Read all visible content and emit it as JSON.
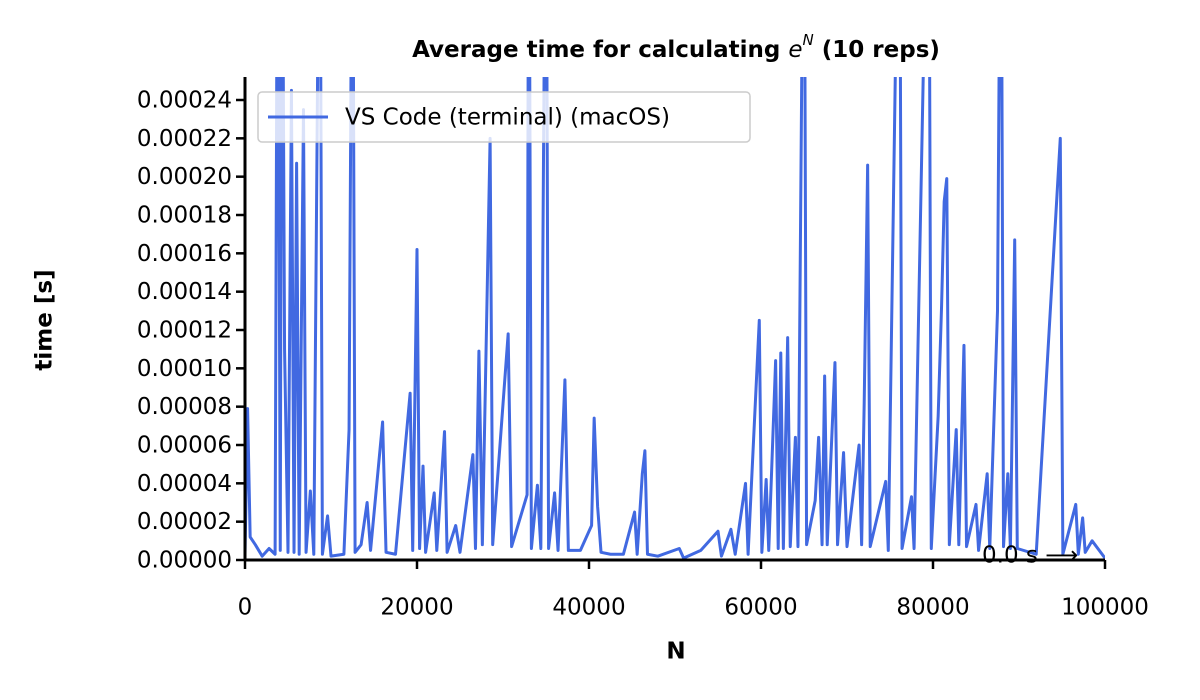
{
  "chart_data": {
    "type": "line",
    "title": [
      "Average time for calculating ",
      "e",
      "N",
      " (10 reps)"
    ],
    "x_label": "N",
    "y_label": "time [s]",
    "annotation": "0.0 s ⟶",
    "legend": "upper left",
    "xlim": [
      0,
      100000
    ],
    "ylim": [
      0,
      0.000252
    ],
    "xticks": [
      0,
      20000,
      40000,
      60000,
      80000,
      100000
    ],
    "yticks": [
      {
        "value": 0,
        "label": "0.00000"
      },
      {
        "value": 2e-05,
        "label": "0.00002"
      },
      {
        "value": 4e-05,
        "label": "0.00004"
      },
      {
        "value": 6e-05,
        "label": "0.00006"
      },
      {
        "value": 8e-05,
        "label": "0.00008"
      },
      {
        "value": 0.0001,
        "label": "0.00010"
      },
      {
        "value": 0.00012,
        "label": "0.00012"
      },
      {
        "value": 0.00014,
        "label": "0.00014"
      },
      {
        "value": 0.00016,
        "label": "0.00016"
      },
      {
        "value": 0.00018,
        "label": "0.00018"
      },
      {
        "value": 0.0002,
        "label": "0.00020"
      },
      {
        "value": 0.00022,
        "label": "0.00022"
      },
      {
        "value": 0.00024,
        "label": "0.00024"
      }
    ],
    "x": [
      0,
      300,
      600,
      1200,
      2000,
      2800,
      3500,
      3800,
      4100,
      4300,
      4600,
      5000,
      5400,
      5700,
      6000,
      6300,
      6800,
      7100,
      7600,
      8000,
      8700,
      9000,
      9600,
      10000,
      11500,
      12100,
      12500,
      12800,
      13500,
      14200,
      14600,
      16000,
      16400,
      17500,
      19200,
      19500,
      20000,
      20300,
      20700,
      21000,
      22000,
      22300,
      23200,
      23500,
      24500,
      25000,
      26500,
      26800,
      27200,
      27600,
      28500,
      28800,
      30600,
      31000,
      32800,
      33000,
      33300,
      34000,
      34400,
      35000,
      35300,
      36000,
      36400,
      37200,
      37600,
      39000,
      40300,
      40600,
      41000,
      41400,
      42500,
      44000,
      45300,
      45600,
      46200,
      46500,
      46800,
      48000,
      50500,
      51000,
      53000,
      55000,
      55400,
      56500,
      57000,
      58200,
      58500,
      59800,
      60100,
      60600,
      60900,
      61700,
      62000,
      62300,
      62600,
      63100,
      63400,
      64000,
      64300,
      65000,
      65300,
      66300,
      66700,
      67100,
      67400,
      67700,
      68600,
      68900,
      69600,
      70000,
      71400,
      71700,
      72000,
      72400,
      72700,
      74500,
      74800,
      76100,
      76400,
      77500,
      77800,
      79500,
      79800,
      80600,
      81000,
      81300,
      81600,
      81900,
      82700,
      83000,
      83600,
      83900,
      85000,
      85300,
      86300,
      86600,
      87500,
      87900,
      88200,
      88700,
      89000,
      89500,
      89800,
      92000,
      94800,
      95100,
      96600,
      96900,
      97400,
      97700,
      98500,
      100000
    ],
    "series": [
      {
        "name": "VS Code (terminal) (macOS)",
        "color": "#4169e1",
        "values": [
          3e-06,
          7.9e-05,
          1.2e-05,
          8e-06,
          2e-06,
          6e-06,
          3e-06,
          0.0004,
          5e-06,
          0.0004,
          0.00011,
          4e-06,
          0.000245,
          4e-06,
          0.000207,
          3e-06,
          0.000235,
          4e-06,
          3.6e-05,
          3e-06,
          0.0004,
          3e-06,
          2.3e-05,
          2e-06,
          3e-06,
          6.8e-05,
          0.0004,
          4e-06,
          8e-06,
          3e-05,
          5e-06,
          7.2e-05,
          4e-06,
          3e-06,
          8.7e-05,
          5e-06,
          0.000162,
          6e-06,
          4.9e-05,
          4e-06,
          3.5e-05,
          5e-06,
          6.7e-05,
          4e-06,
          1.8e-05,
          4e-06,
          5.5e-05,
          6e-06,
          0.000109,
          8e-06,
          0.00022,
          8e-06,
          0.000118,
          7e-06,
          3.4e-05,
          0.0004,
          6e-06,
          3.9e-05,
          6e-06,
          0.0004,
          6e-06,
          3.5e-05,
          5e-06,
          9.4e-05,
          5e-06,
          5e-06,
          1.8e-05,
          7.4e-05,
          2.8e-05,
          4e-06,
          3e-06,
          3e-06,
          2.5e-05,
          3e-06,
          4.5e-05,
          5.7e-05,
          3e-06,
          2e-06,
          6e-06,
          1e-06,
          5e-06,
          1.5e-05,
          2e-06,
          1.6e-05,
          3e-06,
          4e-05,
          3e-06,
          0.000125,
          4e-06,
          4.2e-05,
          5e-06,
          0.000104,
          6e-06,
          0.000108,
          6e-06,
          0.000116,
          7e-06,
          6.4e-05,
          7e-06,
          0.0004,
          8e-06,
          3.1e-05,
          6.4e-05,
          8e-06,
          9.6e-05,
          8e-06,
          0.000103,
          8e-06,
          5.6e-05,
          7e-06,
          6e-05,
          8e-06,
          8.2e-05,
          0.000206,
          7e-06,
          4.1e-05,
          5e-06,
          0.0004,
          6e-06,
          3.3e-05,
          6e-06,
          0.0004,
          6e-06,
          7.5e-05,
          0.000133,
          0.000187,
          0.000199,
          8e-06,
          6.8e-05,
          8e-06,
          0.000112,
          7e-06,
          2.9e-05,
          5e-06,
          4.5e-05,
          6e-06,
          0.00013,
          0.0004,
          7e-06,
          4.5e-05,
          6e-06,
          0.000167,
          6e-06,
          3e-06,
          0.00022,
          3e-06,
          2.9e-05,
          3e-06,
          2.2e-05,
          4e-06,
          1e-05,
          1e-06
        ]
      }
    ]
  }
}
